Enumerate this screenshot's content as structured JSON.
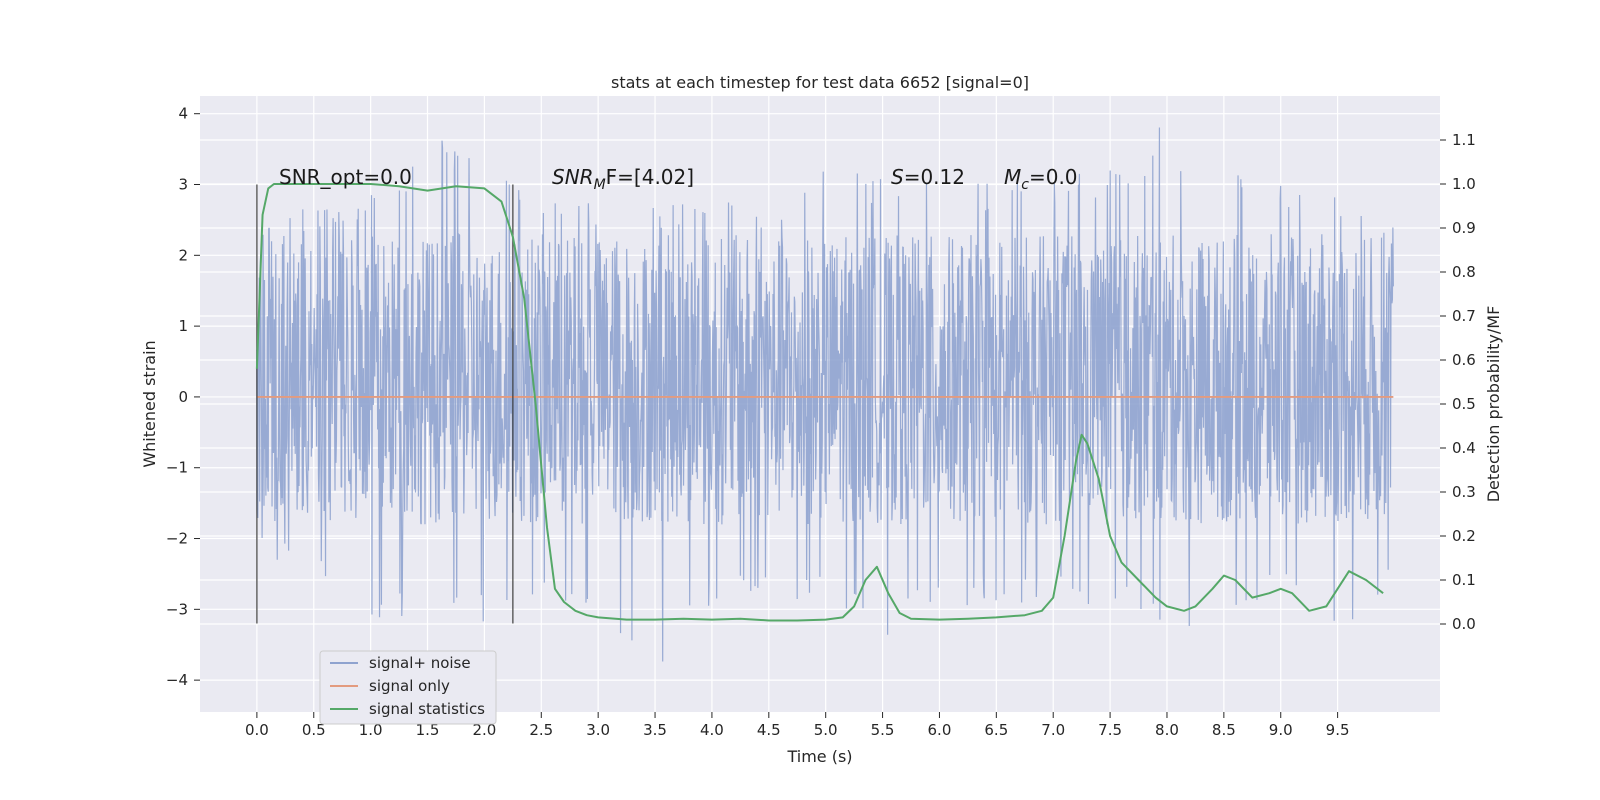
{
  "chart_data": {
    "type": "line",
    "title": "stats at each timestep for test data 6652 [signal=0]",
    "xlabel": "Time (s)",
    "ylabel": "Whitened strain",
    "y2label": "Detection probability/MF",
    "xlim": [
      -0.5,
      10.4
    ],
    "ylim": [
      -4.45,
      4.25
    ],
    "y2lim": [
      -0.2,
      1.2
    ],
    "x_ticks": [
      "0.0",
      "0.5",
      "1.0",
      "1.5",
      "2.0",
      "2.5",
      "3.0",
      "3.5",
      "4.0",
      "4.5",
      "5.0",
      "5.5",
      "6.0",
      "6.5",
      "7.0",
      "7.5",
      "8.0",
      "8.5",
      "9.0",
      "9.5"
    ],
    "y_ticks": [
      "4",
      "3",
      "2",
      "1",
      "0",
      "−1",
      "−2",
      "−3",
      "−4"
    ],
    "y2_ticks": [
      "1.1",
      "1.0",
      "0.9",
      "0.8",
      "0.7",
      "0.6",
      "0.5",
      "0.4",
      "0.3",
      "0.2",
      "0.1",
      "0.0"
    ],
    "grid": true,
    "legend_position": "lower-left",
    "annotations": {
      "snr_opt": "SNR_opt=0.0",
      "snr_mf_prefix": "SNR",
      "snr_mf_sub": "M",
      "snr_mf_suffix": "F=[4.02]",
      "s_label": "S",
      "s_value": "=0.12",
      "mc_label": "M",
      "mc_sub": "c",
      "mc_value": "=0.0"
    },
    "vertical_markers": [
      0.0,
      2.25
    ],
    "vertical_marker_range": [
      -3.2,
      3.0
    ],
    "series": [
      {
        "name": "signal+ noise",
        "color": "#8fa3cf",
        "axis": "left",
        "x_range": [
          0.0,
          9.99
        ],
        "band_typical": [
          -1.8,
          2.3
        ],
        "envelope": [
          {
            "x": 0.0,
            "max": 2.4,
            "min": -2.2
          },
          {
            "x": 0.5,
            "max": 2.8,
            "min": -2.6
          },
          {
            "x": 1.0,
            "max": 2.9,
            "min": -3.3
          },
          {
            "x": 1.5,
            "max": 3.7,
            "min": -3.0
          },
          {
            "x": 2.0,
            "max": 3.4,
            "min": -3.2
          },
          {
            "x": 2.5,
            "max": 2.9,
            "min": -2.9
          },
          {
            "x": 3.0,
            "max": 2.8,
            "min": -3.0
          },
          {
            "x": 3.5,
            "max": 2.7,
            "min": -4.0
          },
          {
            "x": 4.0,
            "max": 2.8,
            "min": -3.0
          },
          {
            "x": 4.5,
            "max": 2.8,
            "min": -2.8
          },
          {
            "x": 5.0,
            "max": 3.2,
            "min": -3.0
          },
          {
            "x": 5.5,
            "max": 3.2,
            "min": -3.4
          },
          {
            "x": 6.0,
            "max": 3.1,
            "min": -3.0
          },
          {
            "x": 6.5,
            "max": 3.1,
            "min": -2.9
          },
          {
            "x": 7.0,
            "max": 3.2,
            "min": -3.0
          },
          {
            "x": 7.5,
            "max": 3.2,
            "min": -2.9
          },
          {
            "x": 8.0,
            "max": 3.9,
            "min": -3.4
          },
          {
            "x": 8.5,
            "max": 3.2,
            "min": -3.1
          },
          {
            "x": 9.0,
            "max": 3.1,
            "min": -2.7
          },
          {
            "x": 9.5,
            "max": 2.9,
            "min": -3.5
          },
          {
            "x": 9.99,
            "max": 2.5,
            "min": -2.6
          }
        ]
      },
      {
        "name": "signal only",
        "color": "#e39b7f",
        "axis": "left",
        "x": [
          0.0,
          9.99
        ],
        "y": [
          0.0,
          0.0
        ]
      },
      {
        "name": "signal statistics",
        "color": "#55a868",
        "axis": "right",
        "x": [
          0.0,
          0.05,
          0.1,
          0.15,
          0.25,
          0.5,
          1.0,
          1.25,
          1.5,
          1.75,
          2.0,
          2.15,
          2.25,
          2.35,
          2.45,
          2.55,
          2.62,
          2.7,
          2.8,
          2.9,
          3.0,
          3.25,
          3.5,
          3.75,
          4.0,
          4.25,
          4.5,
          4.75,
          5.0,
          5.15,
          5.25,
          5.35,
          5.45,
          5.55,
          5.65,
          5.75,
          6.0,
          6.25,
          6.5,
          6.75,
          6.9,
          7.0,
          7.1,
          7.2,
          7.25,
          7.3,
          7.4,
          7.5,
          7.6,
          7.75,
          7.9,
          8.0,
          8.15,
          8.25,
          8.4,
          8.5,
          8.6,
          8.75,
          8.9,
          9.0,
          9.1,
          9.25,
          9.4,
          9.5,
          9.6,
          9.75,
          9.9
        ],
        "y": [
          0.58,
          0.93,
          0.99,
          1.0,
          1.0,
          1.0,
          1.0,
          0.995,
          0.985,
          0.995,
          0.99,
          0.96,
          0.88,
          0.74,
          0.5,
          0.22,
          0.08,
          0.05,
          0.03,
          0.02,
          0.015,
          0.01,
          0.01,
          0.012,
          0.01,
          0.012,
          0.008,
          0.008,
          0.01,
          0.015,
          0.04,
          0.1,
          0.13,
          0.07,
          0.025,
          0.012,
          0.01,
          0.012,
          0.015,
          0.02,
          0.03,
          0.06,
          0.2,
          0.37,
          0.43,
          0.41,
          0.33,
          0.2,
          0.14,
          0.1,
          0.06,
          0.04,
          0.03,
          0.04,
          0.08,
          0.11,
          0.1,
          0.06,
          0.07,
          0.08,
          0.07,
          0.03,
          0.04,
          0.08,
          0.12,
          0.1,
          0.07
        ]
      }
    ]
  }
}
